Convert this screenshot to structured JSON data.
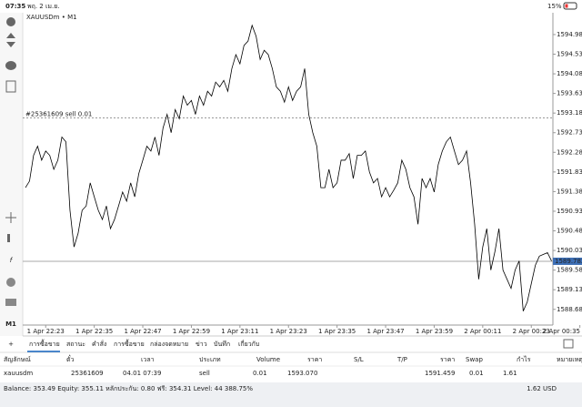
{
  "status_bar": {
    "time": "07:35",
    "date": "พฤ. 2 เม.ย.",
    "battery": "15%"
  },
  "toolbar": {
    "timeframe": "M1"
  },
  "chart_data": {
    "type": "line",
    "title": "XAUUSDm • M1",
    "color": "#000000",
    "grid": false,
    "categories": [
      null,
      null,
      null,
      null,
      null,
      "1 Apr 22:23",
      null,
      null,
      null,
      null,
      null,
      null,
      null,
      null,
      null,
      null,
      null,
      "1 Apr 22:35",
      null,
      null,
      null,
      null,
      null,
      null,
      null,
      null,
      null,
      null,
      null,
      "1 Apr 22:47",
      null,
      null,
      null,
      null,
      null,
      null,
      null,
      null,
      null,
      null,
      null,
      "1 Apr 22:59",
      null,
      null,
      null,
      null,
      null,
      null,
      null,
      null,
      null,
      null,
      null,
      "1 Apr 23:11",
      null,
      null,
      null,
      null,
      null,
      null,
      null,
      null,
      null,
      null,
      null,
      "1 Apr 23:23",
      null,
      null,
      null,
      null,
      null,
      null,
      null,
      null,
      null,
      null,
      null,
      "1 Apr 23:35",
      null,
      null,
      null,
      null,
      null,
      null,
      null,
      null,
      null,
      null,
      null,
      "1 Apr 23:47",
      null,
      null,
      null,
      null,
      null,
      null,
      null,
      null,
      null,
      null,
      null,
      "1 Apr 23:59",
      null,
      null,
      null,
      null,
      null,
      null,
      null,
      null,
      null,
      null,
      null,
      "2 Apr 00:11",
      null,
      null,
      null,
      null,
      null,
      null,
      null,
      null,
      null,
      null,
      null,
      "2 Apr 00:23",
      null,
      null,
      null,
      null,
      null,
      null,
      null,
      null,
      null,
      null,
      null,
      "2 Apr 00:35"
    ],
    "values": [
      1591.47,
      1591.62,
      1592.21,
      1592.42,
      1592.1,
      1592.31,
      1592.21,
      1591.89,
      1592.1,
      1592.63,
      1592.52,
      1590.95,
      1590.11,
      1590.42,
      1590.95,
      1591.05,
      1591.58,
      1591.26,
      1590.95,
      1590.74,
      1591.05,
      1590.53,
      1590.74,
      1591.05,
      1591.37,
      1591.16,
      1591.58,
      1591.26,
      1591.79,
      1592.1,
      1592.42,
      1592.31,
      1592.63,
      1592.21,
      1592.84,
      1593.15,
      1592.73,
      1593.26,
      1593.05,
      1593.57,
      1593.36,
      1593.47,
      1593.15,
      1593.57,
      1593.36,
      1593.68,
      1593.57,
      1593.89,
      1593.78,
      1593.93,
      1593.68,
      1594.2,
      1594.52,
      1594.31,
      1594.73,
      1594.83,
      1595.19,
      1594.94,
      1594.41,
      1594.62,
      1594.52,
      1594.2,
      1593.78,
      1593.68,
      1593.43,
      1593.78,
      1593.47,
      1593.68,
      1593.78,
      1594.2,
      1593.15,
      1592.73,
      1592.42,
      1591.47,
      1591.47,
      1591.89,
      1591.47,
      1591.58,
      1592.1,
      1592.1,
      1592.25,
      1591.68,
      1592.21,
      1592.21,
      1592.31,
      1591.83,
      1591.58,
      1591.68,
      1591.26,
      1591.47,
      1591.26,
      1591.41,
      1591.58,
      1592.1,
      1591.89,
      1591.47,
      1591.26,
      1590.63,
      1591.68,
      1591.47,
      1591.68,
      1591.37,
      1592.0,
      1592.31,
      1592.52,
      1592.63,
      1592.31,
      1592.0,
      1592.1,
      1592.31,
      1591.58,
      1590.63,
      1589.37,
      1590.11,
      1590.53,
      1589.58,
      1590.0,
      1590.53,
      1589.58,
      1589.37,
      1589.16,
      1589.58,
      1589.79,
      1588.64,
      1588.85,
      1589.27,
      1589.69,
      1589.9,
      1589.94,
      1589.98,
      1589.79,
      null,
      null,
      null,
      null,
      null,
      null,
      null
    ],
    "ylim": [
      1588.32,
      1595.48
    ],
    "yticks": [
      {
        "value": 1588.68,
        "label": "1588.680"
      },
      {
        "value": 1589.13,
        "label": "1589.130"
      },
      {
        "value": 1589.58,
        "label": "1589.580"
      },
      {
        "value": 1590.03,
        "label": "1590.030"
      },
      {
        "value": 1590.48,
        "label": "1590.480"
      },
      {
        "value": 1590.93,
        "label": "1590.930"
      },
      {
        "value": 1591.38,
        "label": "1591.380"
      },
      {
        "value": 1591.83,
        "label": "1591.830"
      },
      {
        "value": 1592.28,
        "label": "1592.280"
      },
      {
        "value": 1592.73,
        "label": "1592.730"
      },
      {
        "value": 1593.18,
        "label": "1593.180"
      },
      {
        "value": 1593.63,
        "label": "1593.630"
      },
      {
        "value": 1594.08,
        "label": "1594.080"
      },
      {
        "value": 1594.53,
        "label": "1594.530"
      },
      {
        "value": 1594.98,
        "label": "1594.980"
      }
    ],
    "order_line": {
      "value": 1593.07,
      "label": "#25361609 sell 0.01"
    },
    "price_line": 1589.782
  },
  "tabs": [
    "การซื้อขาย",
    "สถานะ",
    "คำสั่ง",
    "การซื้อขาย",
    "กล่องจดหมาย",
    "ข่าว",
    "บันทึก",
    "เกี่ยวกับ"
  ],
  "table": {
    "header": [
      "สัญลักษณ์",
      "ตั๋ว",
      "เวลา",
      "ประเภท",
      "Volume",
      "ราคา",
      "S/L",
      "T/P",
      "ราคา",
      "Swap",
      "กำไร",
      "หมายเหตุ"
    ],
    "rows": [
      [
        "xauusdm",
        "25361609",
        "04.01 07:39",
        "sell",
        "0.01",
        "1593.070",
        null,
        null,
        "1591.459",
        "0.01",
        "1.61",
        null
      ]
    ]
  },
  "footer": {
    "summary": "Balance: 353.49 Equity: 355.11 หลักประกัน: 0.80 ฟรี: 354.31 Level: 44 388.75%",
    "total": "1.62 USD"
  }
}
